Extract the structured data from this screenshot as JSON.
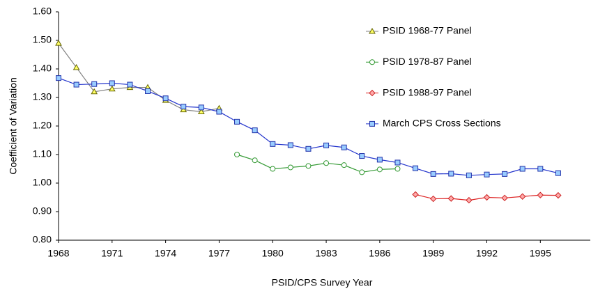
{
  "chart_data": {
    "type": "line",
    "x_label": "PSID/CPS Survey Year",
    "y_label": "Coefficient of Variation",
    "xlim": [
      1968,
      1997.8
    ],
    "xticks": [
      1968,
      1971,
      1974,
      1977,
      1980,
      1983,
      1986,
      1989,
      1992,
      1995
    ],
    "ylim": [
      0.8,
      1.6
    ],
    "yticks": [
      {
        "value": 0.8,
        "label": "0.80"
      },
      {
        "value": 0.9,
        "label": "0.90"
      },
      {
        "value": 1.0,
        "label": "1.00"
      },
      {
        "value": 1.1,
        "label": "1.10"
      },
      {
        "value": 1.2,
        "label": "1.20"
      },
      {
        "value": 1.3,
        "label": "1.30"
      },
      {
        "value": 1.4,
        "label": "1.40"
      },
      {
        "value": 1.5,
        "label": "1.50"
      },
      {
        "value": 1.6,
        "label": "1.60"
      }
    ],
    "legend": "upper right",
    "series": [
      {
        "name": "PSID 1968-77 Panel",
        "color": "#808080",
        "marker": "triangle",
        "marker_fill": "#ffff66",
        "marker_stroke": "#666600",
        "x": [
          1968,
          1969,
          1970,
          1971,
          1972,
          1973,
          1974,
          1975,
          1976,
          1977
        ],
        "values": [
          1.49,
          1.405,
          1.32,
          1.33,
          1.335,
          1.335,
          1.29,
          1.257,
          1.25,
          1.262
        ]
      },
      {
        "name": "PSID 1978-87 Panel",
        "color": "#339933",
        "marker": "circle",
        "marker_fill": "#ffffff",
        "marker_stroke": "#339933",
        "x": [
          1978,
          1979,
          1980,
          1981,
          1982,
          1983,
          1984,
          1985,
          1986,
          1987
        ],
        "values": [
          1.1,
          1.08,
          1.05,
          1.055,
          1.06,
          1.07,
          1.063,
          1.038,
          1.048,
          1.05
        ]
      },
      {
        "name": "PSID 1988-97 Panel",
        "color": "#dd2222",
        "marker": "diamond",
        "marker_fill": "#ffaaaa",
        "marker_stroke": "#cc2222",
        "x": [
          1988,
          1989,
          1990,
          1991,
          1992,
          1993,
          1994,
          1995,
          1996
        ],
        "values": [
          0.96,
          0.945,
          0.946,
          0.94,
          0.95,
          0.948,
          0.953,
          0.958,
          0.957
        ]
      },
      {
        "name": "March CPS Cross Sections",
        "color": "#2233cc",
        "marker": "square",
        "marker_fill": "#99ccff",
        "marker_stroke": "#2233aa",
        "x": [
          1968,
          1969,
          1970,
          1971,
          1972,
          1973,
          1974,
          1975,
          1976,
          1977,
          1978,
          1979,
          1980,
          1981,
          1982,
          1983,
          1984,
          1985,
          1986,
          1987,
          1988,
          1989,
          1990,
          1991,
          1992,
          1993,
          1994,
          1995,
          1996
        ],
        "values": [
          1.368,
          1.345,
          1.347,
          1.35,
          1.345,
          1.322,
          1.297,
          1.268,
          1.265,
          1.25,
          1.215,
          1.185,
          1.137,
          1.133,
          1.12,
          1.132,
          1.125,
          1.095,
          1.082,
          1.072,
          1.052,
          1.032,
          1.033,
          1.027,
          1.03,
          1.032,
          1.05,
          1.05,
          1.035
        ]
      }
    ]
  }
}
